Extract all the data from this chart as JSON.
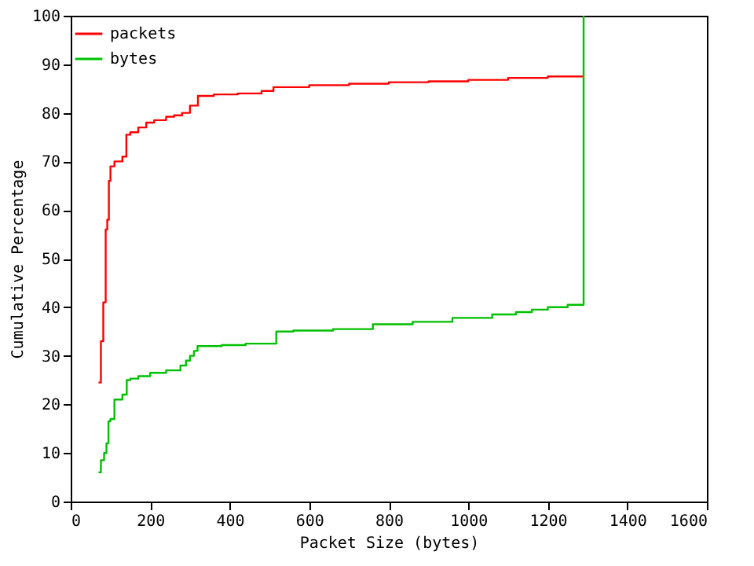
{
  "chart_data": {
    "type": "step",
    "xlabel": "Packet Size (bytes)",
    "ylabel": "Cumulative Percentage",
    "xlim": [
      0,
      1600
    ],
    "xticks": [
      0,
      200,
      400,
      600,
      800,
      1000,
      1200,
      1400,
      1600
    ],
    "ylim": [
      0,
      100
    ],
    "yticks": [
      0,
      10,
      20,
      30,
      40,
      50,
      60,
      70,
      80,
      90,
      100
    ],
    "grid": false,
    "legend": "top left",
    "marker": "none",
    "line_style": "solid",
    "series": [
      {
        "name": "packets",
        "color": "#ff0000",
        "x": [
          70,
          76,
          82,
          88,
          92,
          96,
          100,
          110,
          130,
          140,
          150,
          170,
          190,
          210,
          240,
          260,
          280,
          300,
          320,
          360,
          420,
          480,
          510,
          600,
          700,
          800,
          900,
          1000,
          1100,
          1200,
          1290
        ],
        "values": [
          24.5,
          33,
          41,
          56,
          58,
          66,
          69,
          70,
          71,
          75.5,
          76,
          77,
          78,
          78.5,
          79.2,
          79.5,
          80,
          81.5,
          83.5,
          83.8,
          84,
          84.5,
          85.3,
          85.7,
          86,
          86.3,
          86.5,
          86.8,
          87.2,
          87.5,
          87.5
        ]
      },
      {
        "name": "bytes",
        "color": "#00c000",
        "x": [
          70,
          76,
          84,
          90,
          95,
          100,
          110,
          130,
          141,
          150,
          170,
          200,
          240,
          276,
          290,
          300,
          310,
          319,
          380,
          440,
          517,
          560,
          660,
          760,
          860,
          960,
          1060,
          1120,
          1160,
          1200,
          1250,
          1290,
          1290
        ],
        "values": [
          6,
          8.5,
          10,
          12,
          16.5,
          17,
          21,
          22,
          25,
          25.3,
          25.8,
          26.5,
          27,
          28,
          29,
          30,
          31,
          32,
          32.2,
          32.5,
          35,
          35.2,
          35.5,
          36.5,
          37,
          37.8,
          38.5,
          39,
          39.5,
          40,
          40.5,
          41,
          100
        ]
      }
    ]
  }
}
